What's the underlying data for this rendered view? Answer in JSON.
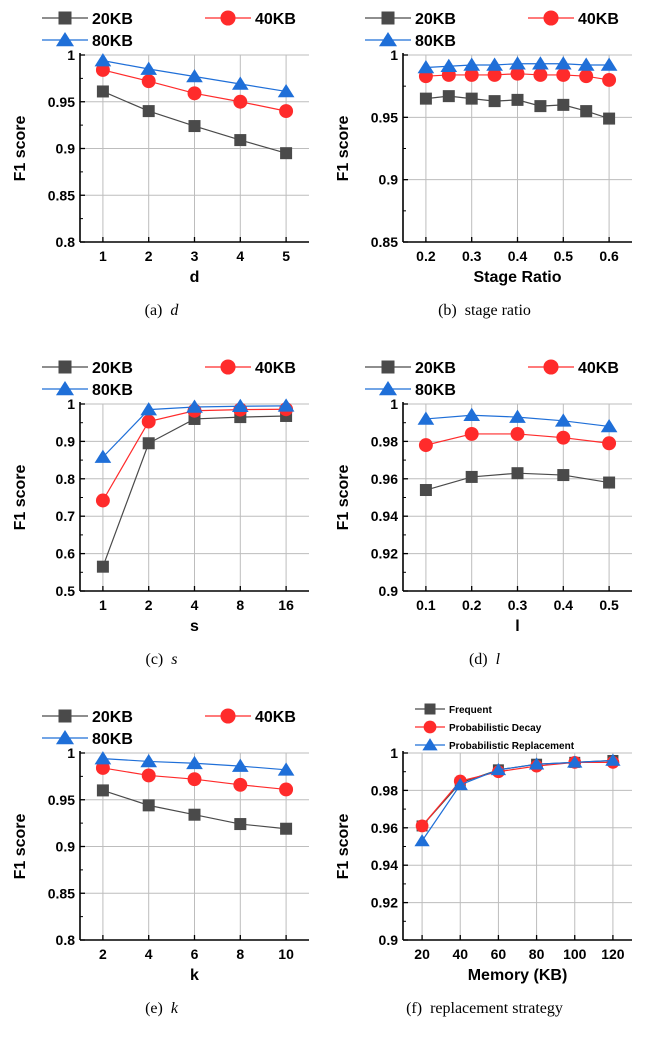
{
  "colors": {
    "s20": "#4a4a4a",
    "s40": "#ff2b2b",
    "s80": "#1f6fd8",
    "grid": "#bdbdbd",
    "axis": "#000000"
  },
  "chart_data": [
    {
      "id": "a",
      "type": "line",
      "caption_prefix": "(a)",
      "caption": "d",
      "caption_italic": true,
      "xlabel": "d",
      "ylabel": "F1 score",
      "categories": [
        "1",
        "2",
        "3",
        "4",
        "5"
      ],
      "ylim": [
        0.8,
        1.0
      ],
      "yticks": [
        "0.8",
        "0.85",
        "0.9",
        "0.95",
        "1"
      ],
      "ytick_values": [
        0.8,
        0.85,
        0.9,
        0.95,
        1.0
      ],
      "legend": "two-row",
      "grid": true,
      "series": [
        {
          "name": "20KB",
          "marker": "square",
          "values": [
            0.961,
            0.94,
            0.924,
            0.909,
            0.895
          ]
        },
        {
          "name": "40KB",
          "marker": "circle",
          "values": [
            0.984,
            0.972,
            0.959,
            0.95,
            0.94
          ]
        },
        {
          "name": "80KB",
          "marker": "triangle",
          "values": [
            0.994,
            0.985,
            0.977,
            0.969,
            0.961
          ]
        }
      ]
    },
    {
      "id": "b",
      "type": "line",
      "caption_prefix": "(b)",
      "caption": "stage ratio",
      "caption_italic": false,
      "xlabel": "Stage Ratio",
      "ylabel": "F1 score",
      "x": [
        0.2,
        0.25,
        0.3,
        0.35,
        0.4,
        0.45,
        0.5,
        0.55,
        0.6
      ],
      "xlim": [
        0.15,
        0.65
      ],
      "xticks": [
        "0.2",
        "0.3",
        "0.4",
        "0.5",
        "0.6"
      ],
      "xtick_values": [
        0.2,
        0.3,
        0.4,
        0.5,
        0.6
      ],
      "ylim": [
        0.85,
        1.0
      ],
      "yticks": [
        "0.85",
        "0.9",
        "0.95",
        "1"
      ],
      "ytick_values": [
        0.85,
        0.9,
        0.95,
        1.0
      ],
      "legend": "two-row",
      "grid": true,
      "series": [
        {
          "name": "20KB",
          "marker": "square",
          "values": [
            0.965,
            0.967,
            0.965,
            0.963,
            0.964,
            0.959,
            0.96,
            0.955,
            0.949
          ]
        },
        {
          "name": "40KB",
          "marker": "circle",
          "values": [
            0.983,
            0.984,
            0.984,
            0.984,
            0.985,
            0.984,
            0.984,
            0.983,
            0.98
          ]
        },
        {
          "name": "80KB",
          "marker": "triangle",
          "values": [
            0.99,
            0.991,
            0.992,
            0.992,
            0.993,
            0.993,
            0.993,
            0.992,
            0.992
          ]
        }
      ]
    },
    {
      "id": "c",
      "type": "line",
      "caption_prefix": "(c)",
      "caption": "s",
      "caption_italic": true,
      "xlabel": "s",
      "ylabel": "F1 score",
      "categories": [
        "1",
        "2",
        "4",
        "8",
        "16"
      ],
      "ylim": [
        0.5,
        1.0
      ],
      "yticks": [
        "0.5",
        "0.6",
        "0.7",
        "0.8",
        "0.9",
        "1"
      ],
      "ytick_values": [
        0.5,
        0.6,
        0.7,
        0.8,
        0.9,
        1.0
      ],
      "legend": "two-row",
      "grid": true,
      "series": [
        {
          "name": "20KB",
          "marker": "square",
          "values": [
            0.565,
            0.895,
            0.96,
            0.965,
            0.968
          ]
        },
        {
          "name": "40KB",
          "marker": "circle",
          "values": [
            0.742,
            0.953,
            0.982,
            0.985,
            0.986
          ]
        },
        {
          "name": "80KB",
          "marker": "triangle",
          "values": [
            0.858,
            0.985,
            0.992,
            0.994,
            0.995
          ]
        }
      ]
    },
    {
      "id": "d",
      "type": "line",
      "caption_prefix": "(d)",
      "caption": "l",
      "caption_italic": true,
      "xlabel": "l",
      "ylabel": "F1 score",
      "categories": [
        "0.1",
        "0.2",
        "0.3",
        "0.4",
        "0.5"
      ],
      "ylim": [
        0.9,
        1.0
      ],
      "yticks": [
        "0.9",
        "0.92",
        "0.94",
        "0.96",
        "0.98",
        "1"
      ],
      "ytick_values": [
        0.9,
        0.92,
        0.94,
        0.96,
        0.98,
        1.0
      ],
      "legend": "two-row",
      "grid": true,
      "series": [
        {
          "name": "20KB",
          "marker": "square",
          "values": [
            0.954,
            0.961,
            0.963,
            0.962,
            0.958
          ]
        },
        {
          "name": "40KB",
          "marker": "circle",
          "values": [
            0.978,
            0.984,
            0.984,
            0.982,
            0.979
          ]
        },
        {
          "name": "80KB",
          "marker": "triangle",
          "values": [
            0.992,
            0.994,
            0.993,
            0.991,
            0.988
          ]
        }
      ]
    },
    {
      "id": "e",
      "type": "line",
      "caption_prefix": "(e)",
      "caption": "k",
      "caption_italic": true,
      "xlabel": "k",
      "ylabel": "F1 score",
      "categories": [
        "2",
        "4",
        "6",
        "8",
        "10"
      ],
      "ylim": [
        0.8,
        1.0
      ],
      "yticks": [
        "0.8",
        "0.85",
        "0.9",
        "0.95",
        "1"
      ],
      "ytick_values": [
        0.8,
        0.85,
        0.9,
        0.95,
        1.0
      ],
      "legend": "two-row",
      "grid": true,
      "series": [
        {
          "name": "20KB",
          "marker": "square",
          "values": [
            0.96,
            0.944,
            0.934,
            0.924,
            0.919
          ]
        },
        {
          "name": "40KB",
          "marker": "circle",
          "values": [
            0.984,
            0.976,
            0.972,
            0.966,
            0.961
          ]
        },
        {
          "name": "80KB",
          "marker": "triangle",
          "values": [
            0.994,
            0.991,
            0.989,
            0.986,
            0.982
          ]
        }
      ]
    },
    {
      "id": "f",
      "type": "line",
      "caption_prefix": "(f)",
      "caption": "replacement strategy",
      "caption_italic": false,
      "xlabel": "Memory (KB)",
      "ylabel": "F1 score",
      "categories": [
        "20",
        "40",
        "60",
        "80",
        "100",
        "120"
      ],
      "ylim": [
        0.9,
        1.0
      ],
      "yticks": [
        "0.9",
        "0.92",
        "0.94",
        "0.96",
        "0.98",
        "1"
      ],
      "ytick_values": [
        0.9,
        0.92,
        0.94,
        0.96,
        0.98,
        1.0
      ],
      "legend": "stacked",
      "grid": true,
      "series": [
        {
          "name": "Frequent",
          "marker": "square",
          "values": [
            0.961,
            0.984,
            0.991,
            0.994,
            0.995,
            0.996
          ]
        },
        {
          "name": "Probabilistic Decay",
          "marker": "circle",
          "values": [
            0.961,
            0.985,
            0.99,
            0.993,
            0.995,
            0.995
          ]
        },
        {
          "name": "Probabilistic Replacement",
          "marker": "triangle",
          "values": [
            0.953,
            0.983,
            0.991,
            0.994,
            0.995,
            0.996
          ]
        }
      ]
    }
  ]
}
